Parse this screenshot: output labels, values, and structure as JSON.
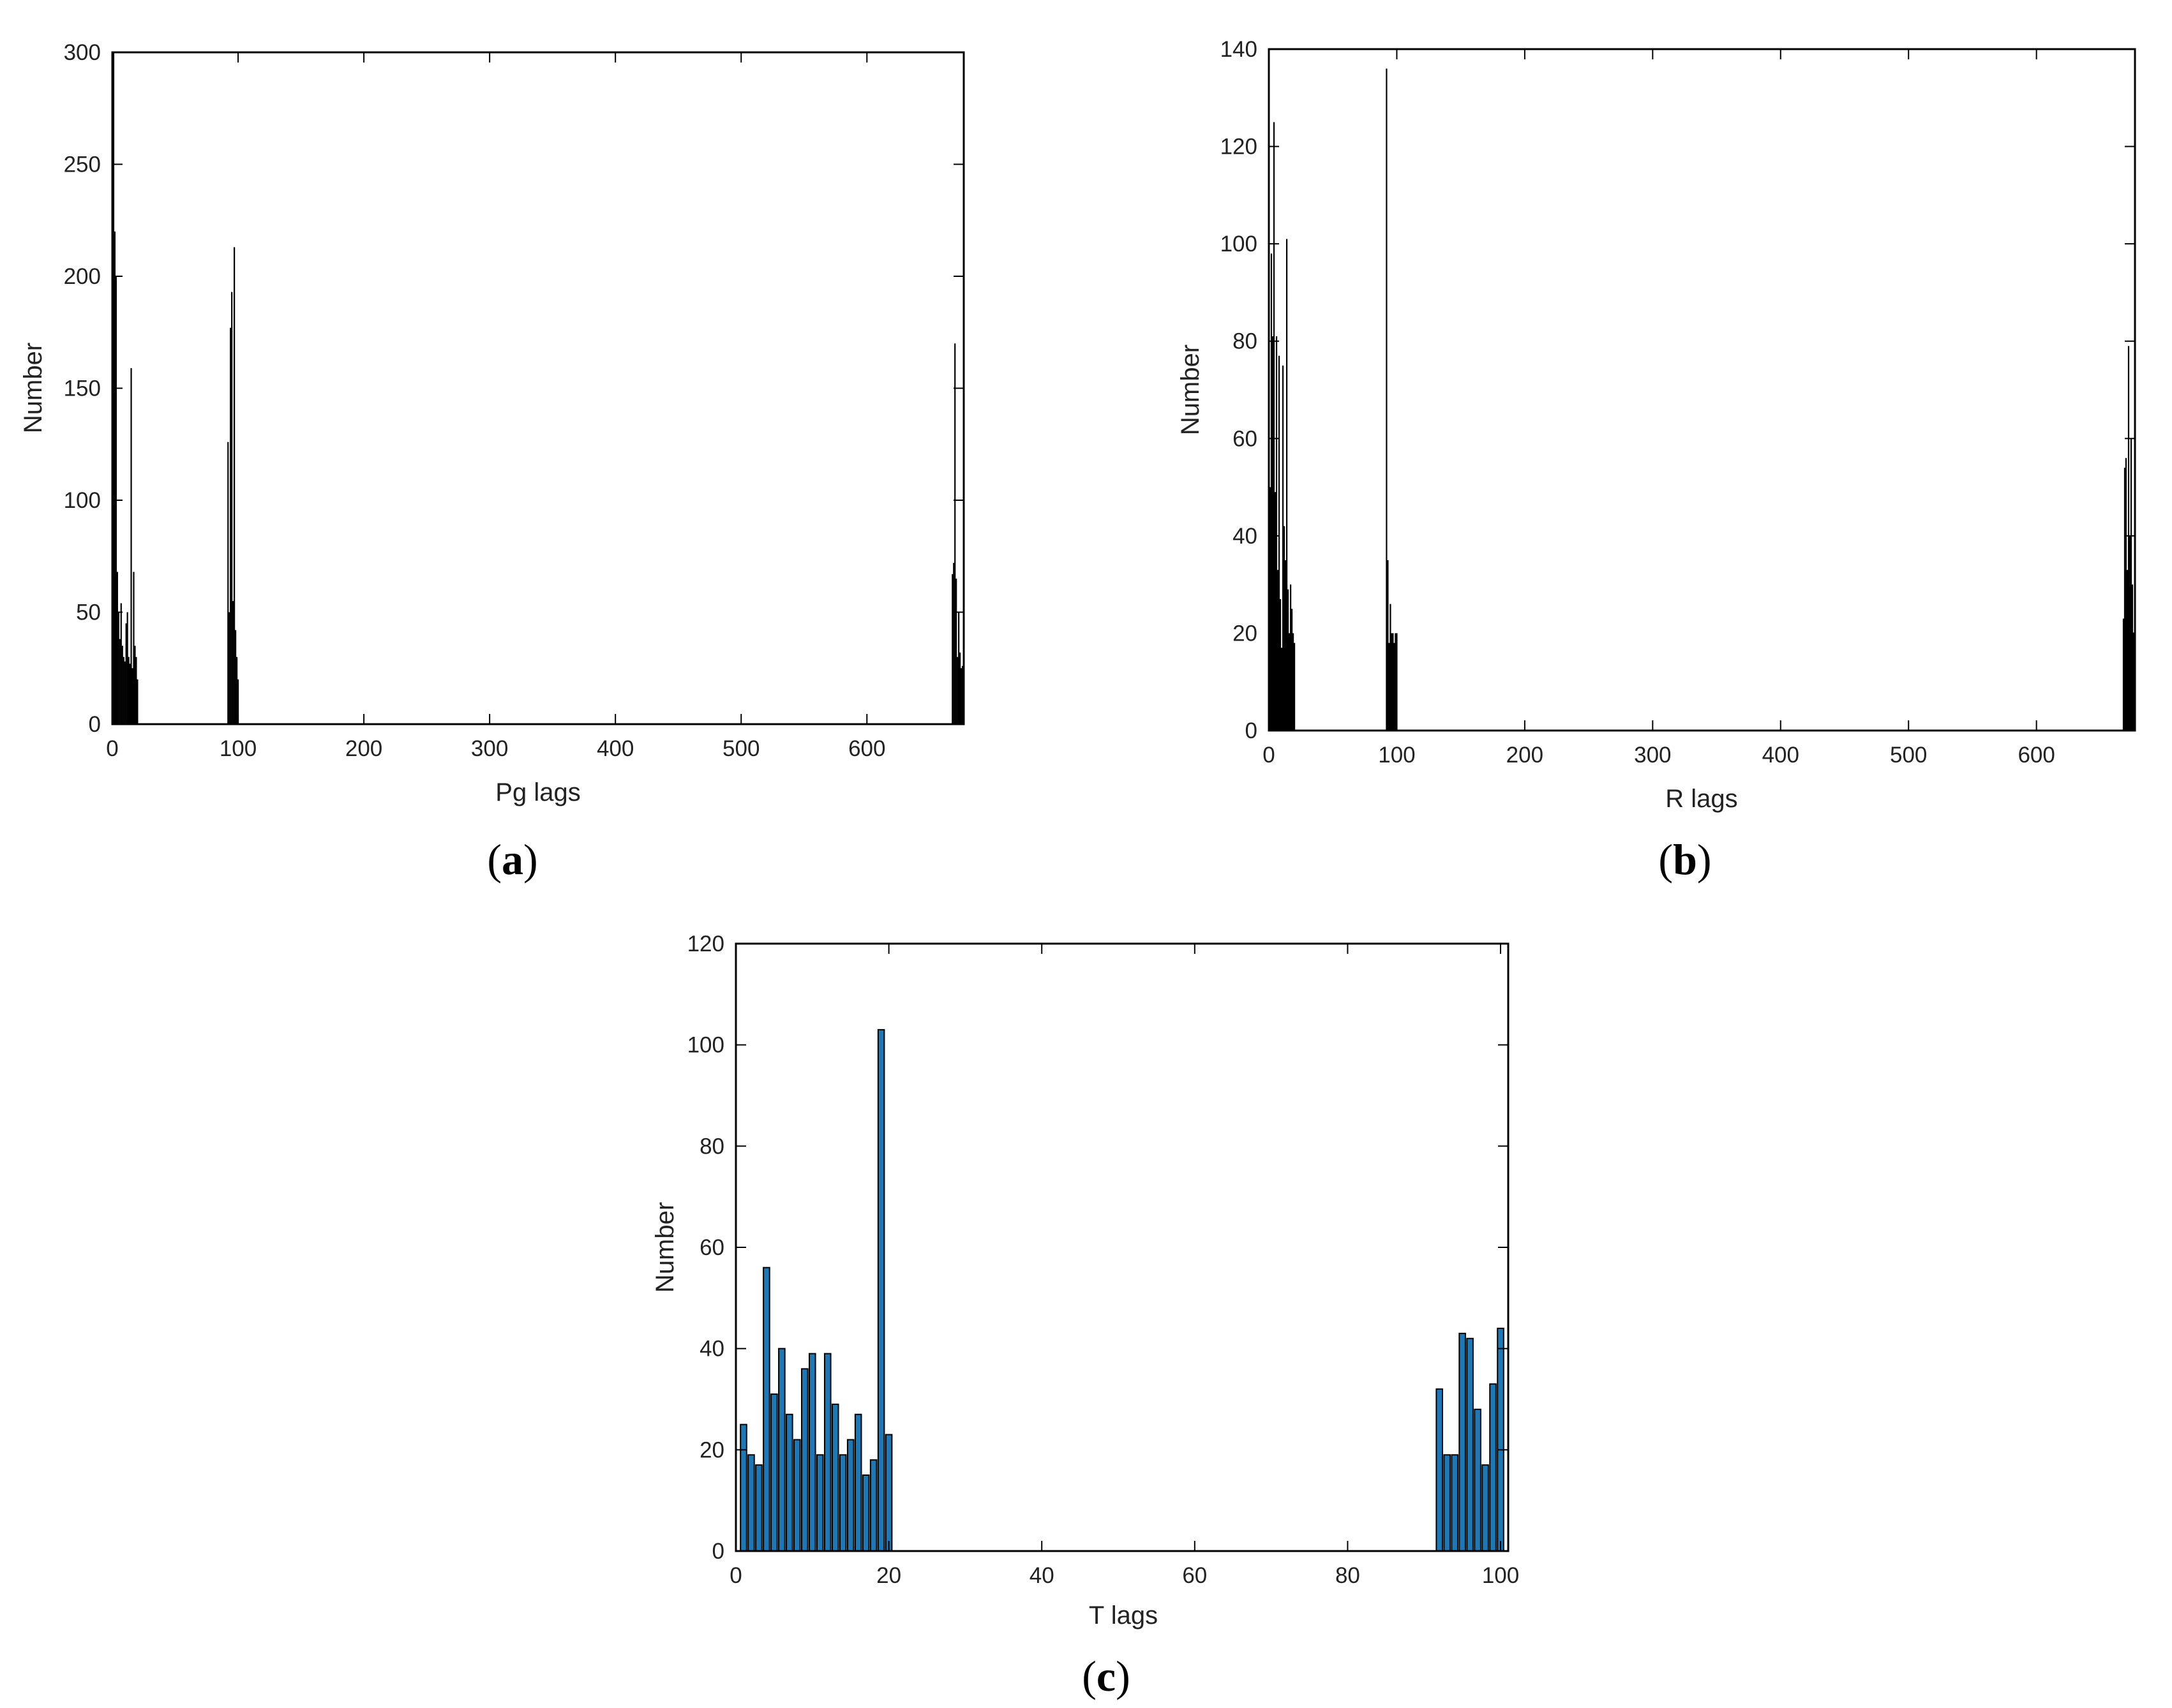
{
  "chart_data": [
    {
      "type": "bar",
      "panel_label": "a",
      "xlabel": "Pg lags",
      "ylabel": "Number",
      "xlim": [
        0,
        677
      ],
      "ylim": [
        0,
        300
      ],
      "xticks": [
        0,
        100,
        200,
        300,
        400,
        500,
        600
      ],
      "yticks": [
        0,
        50,
        100,
        150,
        200,
        250,
        300
      ],
      "bar_color": "#000000",
      "grid": false,
      "x": [
        1,
        2,
        3,
        4,
        5,
        6,
        7,
        8,
        9,
        10,
        11,
        12,
        13,
        14,
        15,
        16,
        17,
        18,
        19,
        20,
        92,
        93,
        94,
        95,
        96,
        97,
        98,
        99,
        100,
        668,
        669,
        670,
        671,
        672,
        673,
        674,
        675,
        676
      ],
      "values": [
        300,
        220,
        200,
        68,
        50,
        38,
        54,
        35,
        30,
        28,
        45,
        50,
        30,
        27,
        159,
        25,
        68,
        35,
        30,
        20,
        126,
        50,
        177,
        193,
        55,
        213,
        42,
        30,
        20,
        67,
        72,
        170,
        65,
        30,
        50,
        32,
        25,
        26
      ]
    },
    {
      "type": "bar",
      "panel_label": "b",
      "xlabel": "R lags",
      "ylabel": "Number",
      "xlim": [
        0,
        677
      ],
      "ylim": [
        0,
        140
      ],
      "xticks": [
        0,
        100,
        200,
        300,
        400,
        500,
        600
      ],
      "yticks": [
        0,
        20,
        40,
        60,
        80,
        100,
        120,
        140
      ],
      "bar_color": "#000000",
      "grid": false,
      "x": [
        1,
        2,
        3,
        4,
        5,
        6,
        7,
        8,
        9,
        10,
        11,
        12,
        13,
        14,
        15,
        16,
        17,
        18,
        19,
        20,
        92,
        93,
        94,
        95,
        96,
        97,
        98,
        99,
        100,
        668,
        669,
        670,
        671,
        672,
        673,
        674,
        675,
        676
      ],
      "values": [
        50,
        98,
        81,
        125,
        49,
        81,
        33,
        77,
        27,
        17,
        75,
        42,
        35,
        101,
        29,
        20,
        30,
        25,
        20,
        18,
        136,
        35,
        18,
        26,
        20,
        20,
        18,
        20,
        20,
        23,
        54,
        56,
        33,
        79,
        40,
        60,
        30,
        20
      ]
    },
    {
      "type": "bar",
      "panel_label": "c",
      "xlabel": "T lags",
      "ylabel": "Number",
      "xlim": [
        0,
        101
      ],
      "ylim": [
        0,
        120
      ],
      "xticks": [
        0,
        20,
        40,
        60,
        80,
        100
      ],
      "yticks": [
        0,
        20,
        40,
        60,
        80,
        100,
        120
      ],
      "bar_color": "#1f77b4",
      "grid": false,
      "x": [
        1,
        2,
        3,
        4,
        5,
        6,
        7,
        8,
        9,
        10,
        11,
        12,
        13,
        14,
        15,
        16,
        17,
        18,
        19,
        20,
        92,
        93,
        94,
        95,
        96,
        97,
        98,
        99,
        100
      ],
      "values": [
        25,
        19,
        17,
        56,
        31,
        40,
        27,
        22,
        36,
        39,
        19,
        39,
        29,
        19,
        22,
        27,
        15,
        18,
        103,
        23,
        32,
        19,
        19,
        43,
        42,
        28,
        17,
        33,
        44
      ]
    }
  ]
}
